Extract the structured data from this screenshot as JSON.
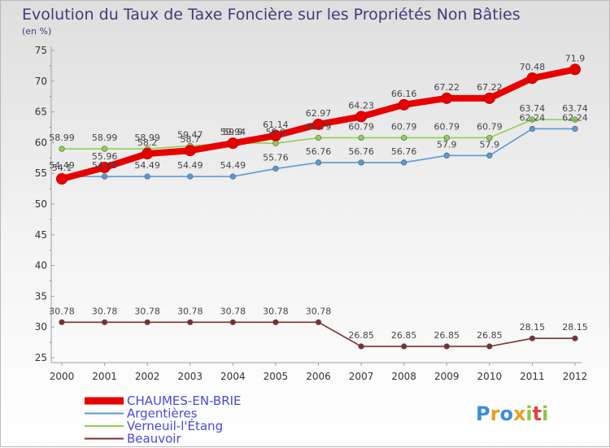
{
  "chart_data": {
    "type": "line",
    "title": "Evolution du Taux de Taxe Foncière sur les Propriétés Non Bâties",
    "subtitle": "(en %)",
    "x": [
      "2000",
      "2001",
      "2002",
      "2003",
      "2004",
      "2005",
      "2006",
      "2007",
      "2008",
      "2009",
      "2010",
      "2011",
      "2012"
    ],
    "ylim": [
      25,
      75
    ],
    "yticks": [
      "25",
      "30",
      "35",
      "40",
      "45",
      "50",
      "55",
      "60",
      "65",
      "70",
      "75"
    ],
    "grid": false,
    "series": [
      {
        "name": "Beauvoir",
        "color": "#7a3030",
        "values": [
          30.78,
          30.78,
          30.78,
          30.78,
          30.78,
          30.78,
          30.78,
          26.85,
          26.85,
          26.85,
          26.85,
          28.15,
          28.15
        ],
        "labels": [
          "30.78",
          "30.78",
          "30.78",
          "30.78",
          "30.78",
          "30.78",
          "30.78",
          "26.85",
          "26.85",
          "26.85",
          "26.85",
          "28.15",
          "28.15"
        ]
      },
      {
        "name": "Verneuil-l'Étang",
        "color": "#8fd14f",
        "values": [
          58.99,
          58.99,
          58.99,
          59.47,
          59.94,
          59.9,
          60.79,
          60.79,
          60.79,
          60.79,
          60.79,
          63.74,
          63.74
        ],
        "labels": [
          "58.99",
          "58.99",
          "58.99",
          "59.47",
          "59.94",
          "59.9",
          "60.79",
          "60.79",
          "60.79",
          "60.79",
          "60.79",
          "63.74",
          "63.74"
        ]
      },
      {
        "name": "Argentières",
        "color": "#5a9ad8",
        "values": [
          54.49,
          54.49,
          54.49,
          54.49,
          54.49,
          55.76,
          56.76,
          56.76,
          56.76,
          57.9,
          57.9,
          62.24,
          62.24
        ],
        "labels": [
          "54.49",
          "54.49",
          "54.49",
          "54.49",
          "54.49",
          "55.76",
          "56.76",
          "56.76",
          "56.76",
          "57.9",
          "57.9",
          "62.24",
          "62.24"
        ]
      },
      {
        "name": "CHAUMES-EN-BRIE",
        "color": "#e80000",
        "values": [
          54.1,
          55.96,
          58.2,
          58.7,
          59.9,
          61.14,
          62.97,
          64.23,
          66.16,
          67.22,
          67.22,
          70.48,
          71.9
        ],
        "labels": [
          "54.1",
          "55.96",
          "58.2",
          "58.7",
          "59.9",
          "61.14",
          "62.97",
          "64.23",
          "66.16",
          "67.22",
          "67.22",
          "70.48",
          "71.9"
        ]
      }
    ],
    "legend": [
      {
        "name": "CHAUMES-EN-BRIE",
        "color": "#e80000"
      },
      {
        "name": "Argentières",
        "color": "#5a9ad8"
      },
      {
        "name": "Verneuil-l'Étang",
        "color": "#8fd14f"
      },
      {
        "name": "Beauvoir",
        "color": "#7a3030"
      }
    ],
    "legend_position": "bottom-left"
  },
  "brand": {
    "letters": [
      "P",
      "r",
      "o",
      "x",
      "i",
      "t",
      "i"
    ],
    "colors": [
      "#3a8fd8",
      "#e8a020",
      "#3a8fd8",
      "#e8a020",
      "#8fc63f",
      "#e84040",
      "#8fc63f"
    ]
  }
}
